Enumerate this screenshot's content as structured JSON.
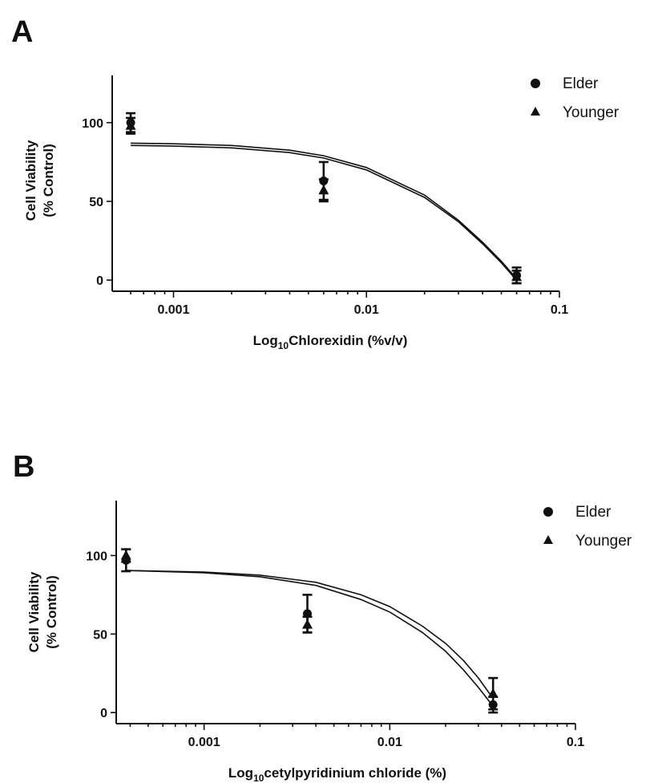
{
  "chart_data": [
    {
      "panel": "A",
      "type": "scatter",
      "xscale": "log",
      "xlim": [
        0.0005,
        0.1
      ],
      "ylim": [
        -4,
        130
      ],
      "xticks": [
        0.001,
        0.01,
        0.1
      ],
      "xtick_labels": [
        "0.001",
        "0.01",
        "0.1"
      ],
      "yticks": [
        0,
        50,
        100
      ],
      "ytick_labels": [
        "0",
        "50",
        "100"
      ],
      "ylabel_lines": [
        "Cell Viability",
        "(%  Control)"
      ],
      "xlabel": {
        "prefix": "Log",
        "subscript": "10",
        "suffix": "Chlorexidin (%v/v)"
      },
      "legend": {
        "position": "top-right"
      },
      "series": [
        {
          "name": "Elder",
          "marker": "circle",
          "x": [
            0.0006,
            0.006,
            0.06
          ],
          "y": [
            100,
            63,
            3
          ],
          "err": [
            6,
            12,
            5
          ],
          "fit": [
            [
              0.0006,
              87
            ],
            [
              0.001,
              86.6
            ],
            [
              0.002,
              85.5
            ],
            [
              0.004,
              82.5
            ],
            [
              0.006,
              79
            ],
            [
              0.01,
              71.5
            ],
            [
              0.02,
              54
            ],
            [
              0.03,
              38
            ],
            [
              0.04,
              24
            ],
            [
              0.05,
              12
            ],
            [
              0.058,
              3
            ]
          ]
        },
        {
          "name": "Younger",
          "marker": "triangle",
          "x": [
            0.0006,
            0.006,
            0.06
          ],
          "y": [
            98,
            57,
            2
          ],
          "err": [
            5,
            7,
            4
          ],
          "fit": [
            [
              0.0006,
              85.5
            ],
            [
              0.001,
              85.1
            ],
            [
              0.002,
              84
            ],
            [
              0.004,
              81
            ],
            [
              0.006,
              77.5
            ],
            [
              0.01,
              70
            ],
            [
              0.02,
              52.5
            ],
            [
              0.03,
              37
            ],
            [
              0.04,
              23
            ],
            [
              0.05,
              11
            ],
            [
              0.058,
              2
            ]
          ]
        }
      ]
    },
    {
      "panel": "B",
      "type": "scatter",
      "xscale": "log",
      "xlim": [
        0.00035,
        0.1
      ],
      "ylim": [
        -4,
        135
      ],
      "xticks": [
        0.001,
        0.01,
        0.1
      ],
      "xtick_labels": [
        "0.001",
        "0.01",
        "0.1"
      ],
      "yticks": [
        0,
        50,
        100
      ],
      "ytick_labels": [
        "0",
        "50",
        "100"
      ],
      "ylabel_lines": [
        "Cell Viability",
        "(%  Control)"
      ],
      "xlabel": {
        "prefix": "Log",
        "subscript": "10",
        "suffix": "cetylpyridinium chloride (%)"
      },
      "legend": {
        "position": "top-right"
      },
      "series": [
        {
          "name": "Elder",
          "marker": "circle",
          "x": [
            0.00038,
            0.0036,
            0.036
          ],
          "y": [
            97,
            63,
            5
          ],
          "err": [
            7,
            12,
            5
          ],
          "fit": [
            [
              0.00038,
              90.5
            ],
            [
              0.001,
              89
            ],
            [
              0.002,
              86.5
            ],
            [
              0.004,
              81
            ],
            [
              0.007,
              72
            ],
            [
              0.01,
              64
            ],
            [
              0.015,
              51
            ],
            [
              0.02,
              39
            ],
            [
              0.025,
              27
            ],
            [
              0.03,
              16
            ],
            [
              0.036,
              4
            ]
          ]
        },
        {
          "name": "Younger",
          "marker": "triangle",
          "x": [
            0.00038,
            0.0036,
            0.036
          ],
          "y": [
            100,
            56,
            12
          ],
          "err": [
            4,
            5,
            10
          ],
          "fit": [
            [
              0.00038,
              90.5
            ],
            [
              0.001,
              89.5
            ],
            [
              0.002,
              87.5
            ],
            [
              0.004,
              83
            ],
            [
              0.007,
              75
            ],
            [
              0.01,
              67.5
            ],
            [
              0.015,
              55
            ],
            [
              0.02,
              44
            ],
            [
              0.025,
              33
            ],
            [
              0.03,
              22
            ],
            [
              0.036,
              9
            ]
          ]
        }
      ]
    }
  ]
}
